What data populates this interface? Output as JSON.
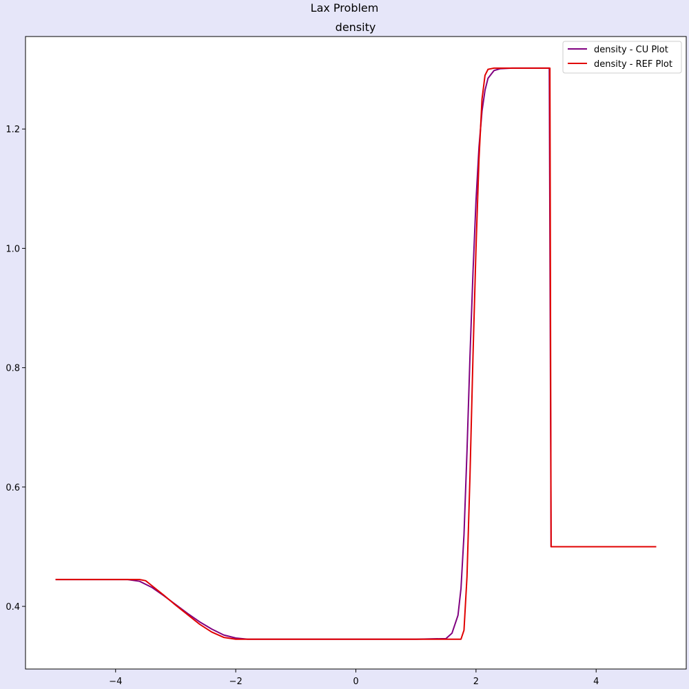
{
  "figure": {
    "suptitle": "Lax Problem",
    "background": "#e6e6f9"
  },
  "chart_data": {
    "type": "line",
    "title": "density",
    "xlabel": "",
    "ylabel": "",
    "xlim": [
      -5.5,
      5.5
    ],
    "ylim": [
      0.295,
      1.355
    ],
    "grid": false,
    "legend_position": "top-right",
    "x_ticks": [
      {
        "value": -4,
        "label": "−4"
      },
      {
        "value": -2,
        "label": "−2"
      },
      {
        "value": 0,
        "label": "0"
      },
      {
        "value": 2,
        "label": "2"
      },
      {
        "value": 4,
        "label": "4"
      }
    ],
    "y_ticks": [
      {
        "value": 0.4,
        "label": "0.4"
      },
      {
        "value": 0.6,
        "label": "0.6"
      },
      {
        "value": 0.8,
        "label": "0.8"
      },
      {
        "value": 1.0,
        "label": "1.0"
      },
      {
        "value": 1.2,
        "label": "1.2"
      }
    ],
    "series": [
      {
        "name": "density - CU Plot",
        "color": "#800080",
        "x": [
          -5.0,
          -3.8,
          -3.6,
          -3.4,
          -3.2,
          -3.0,
          -2.8,
          -2.6,
          -2.4,
          -2.2,
          -2.0,
          -1.8,
          -1.0,
          0.0,
          1.0,
          1.5,
          1.6,
          1.7,
          1.75,
          1.8,
          1.85,
          1.9,
          1.95,
          2.0,
          2.05,
          2.1,
          2.15,
          2.2,
          2.3,
          2.4,
          2.6,
          3.0,
          3.22,
          3.25,
          4.0,
          5.0
        ],
        "y": [
          0.445,
          0.445,
          0.442,
          0.432,
          0.418,
          0.403,
          0.388,
          0.374,
          0.362,
          0.352,
          0.347,
          0.345,
          0.345,
          0.345,
          0.345,
          0.346,
          0.355,
          0.385,
          0.43,
          0.52,
          0.66,
          0.82,
          0.96,
          1.08,
          1.17,
          1.23,
          1.265,
          1.285,
          1.298,
          1.301,
          1.302,
          1.302,
          1.302,
          0.5,
          0.5,
          0.5
        ]
      },
      {
        "name": "density - REF Plot",
        "color": "#e00000",
        "x": [
          -5.0,
          -3.6,
          -3.5,
          -3.4,
          -3.2,
          -3.0,
          -2.8,
          -2.6,
          -2.4,
          -2.2,
          -2.0,
          -1.9,
          -1.0,
          0.0,
          1.0,
          1.75,
          1.8,
          1.85,
          1.9,
          1.95,
          2.0,
          2.05,
          2.1,
          2.15,
          2.2,
          2.3,
          2.5,
          3.0,
          3.23,
          3.25,
          4.0,
          5.0
        ],
        "y": [
          0.445,
          0.445,
          0.443,
          0.435,
          0.419,
          0.402,
          0.386,
          0.37,
          0.357,
          0.348,
          0.345,
          0.345,
          0.345,
          0.345,
          0.345,
          0.345,
          0.36,
          0.45,
          0.62,
          0.82,
          1.0,
          1.15,
          1.25,
          1.29,
          1.3,
          1.302,
          1.302,
          1.302,
          1.302,
          0.5,
          0.5,
          0.5
        ]
      }
    ]
  }
}
